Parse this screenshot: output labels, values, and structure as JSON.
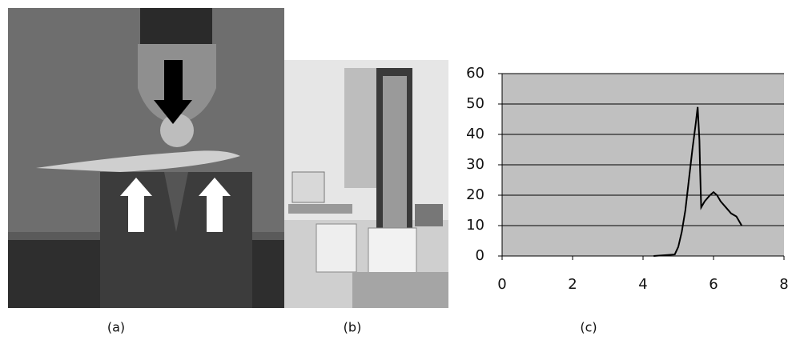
{
  "panel_labels": [
    "(a)",
    "(b)",
    "(c)"
  ],
  "chart_data": {
    "type": "line",
    "x": [
      4.3,
      4.9,
      5.0,
      5.1,
      5.2,
      5.3,
      5.4,
      5.5,
      5.55,
      5.6,
      5.62,
      5.65,
      5.75,
      5.9,
      6.0,
      6.1,
      6.2,
      6.35,
      6.5,
      6.65,
      6.8
    ],
    "series": [
      {
        "color": "#000000",
        "values": [
          0,
          0.5,
          3,
          8,
          15,
          25,
          35,
          44,
          49,
          38,
          28,
          16,
          18,
          20,
          21,
          20,
          18,
          16,
          14,
          13,
          10
        ]
      }
    ],
    "xlim": [
      0,
      8
    ],
    "ylim": [
      0,
      60
    ],
    "xticks": [
      0,
      2,
      4,
      6,
      8
    ],
    "yticks": [
      0,
      10,
      20,
      30,
      40,
      50,
      60
    ],
    "grid": true,
    "background": "#c0c0c0"
  }
}
